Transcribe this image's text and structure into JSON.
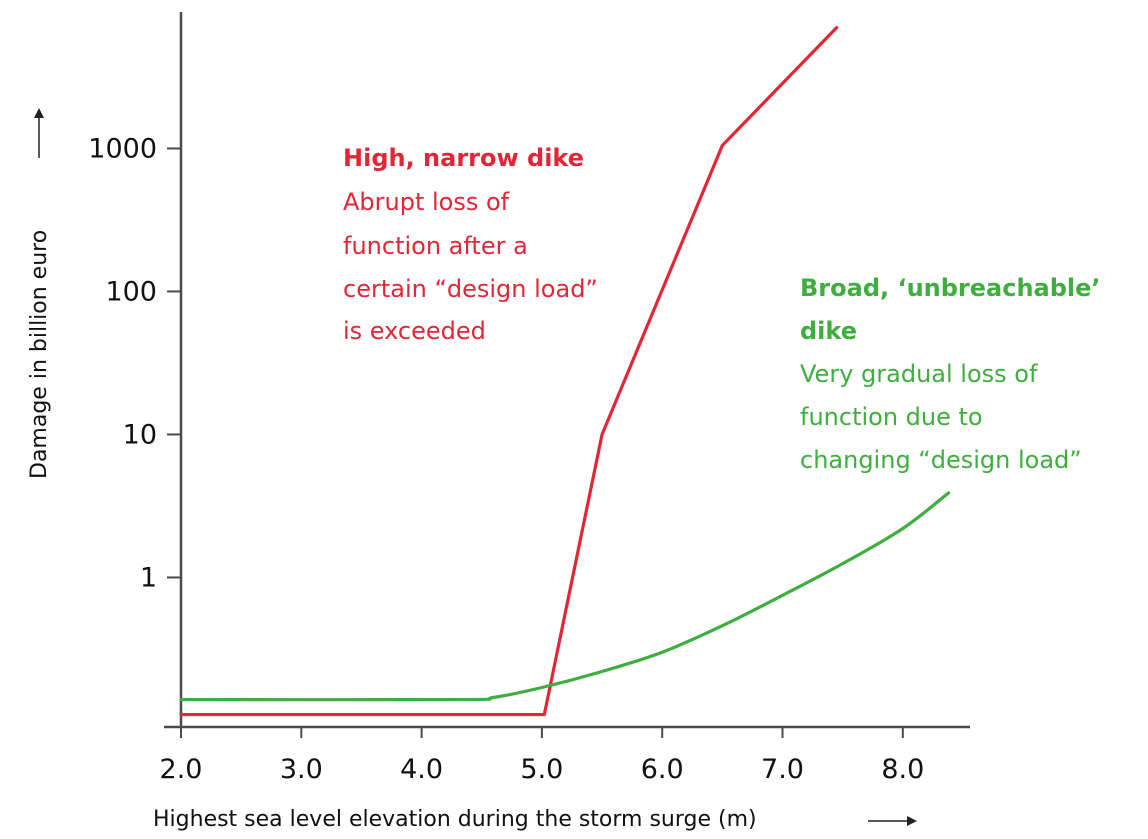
{
  "chart_data": {
    "type": "line",
    "title": "",
    "xlabel": "Highest sea level elevation during the storm surge (m)",
    "ylabel": "Damage in billion euro",
    "x_scale": "linear",
    "y_scale": "log",
    "xlim": [
      2.0,
      8.6
    ],
    "ylim": [
      0.09,
      9000
    ],
    "x_ticks": [
      2.0,
      3.0,
      4.0,
      5.0,
      6.0,
      7.0,
      8.0
    ],
    "x_tick_labels": [
      "2.0",
      "3.0",
      "4.0",
      "5.0",
      "6.0",
      "7.0",
      "8.0"
    ],
    "y_ticks": [
      1,
      10,
      100,
      1000
    ],
    "y_tick_labels": [
      "1",
      "10",
      "100",
      "1000"
    ],
    "grid": false,
    "legend": "none",
    "series": [
      {
        "color": "#e32636",
        "x": [
          2.0,
          5.02,
          5.5,
          6.5,
          7.45
        ],
        "y": [
          0.11,
          0.11,
          10,
          1050,
          7000
        ]
      },
      {
        "color": "#3fae3f",
        "x": [
          2.0,
          4.3,
          4.6,
          5.0,
          5.5,
          6.0,
          6.5,
          7.0,
          7.5,
          8.0,
          8.38
        ],
        "y": [
          0.14,
          0.14,
          0.145,
          0.17,
          0.22,
          0.3,
          0.46,
          0.75,
          1.25,
          2.2,
          3.9
        ]
      }
    ],
    "annotations": [
      {
        "color": "#e32636",
        "title": "High, narrow dike",
        "lines": [
          "Abrupt loss of",
          "function after a",
          "certain “design load”",
          "is exceeded"
        ]
      },
      {
        "color": "#3fae3f",
        "title_lines": [
          "Broad, ‘unbreachable’",
          "dike"
        ],
        "lines": [
          "Very gradual loss of",
          "function due to",
          "changing “design load”"
        ]
      }
    ]
  }
}
